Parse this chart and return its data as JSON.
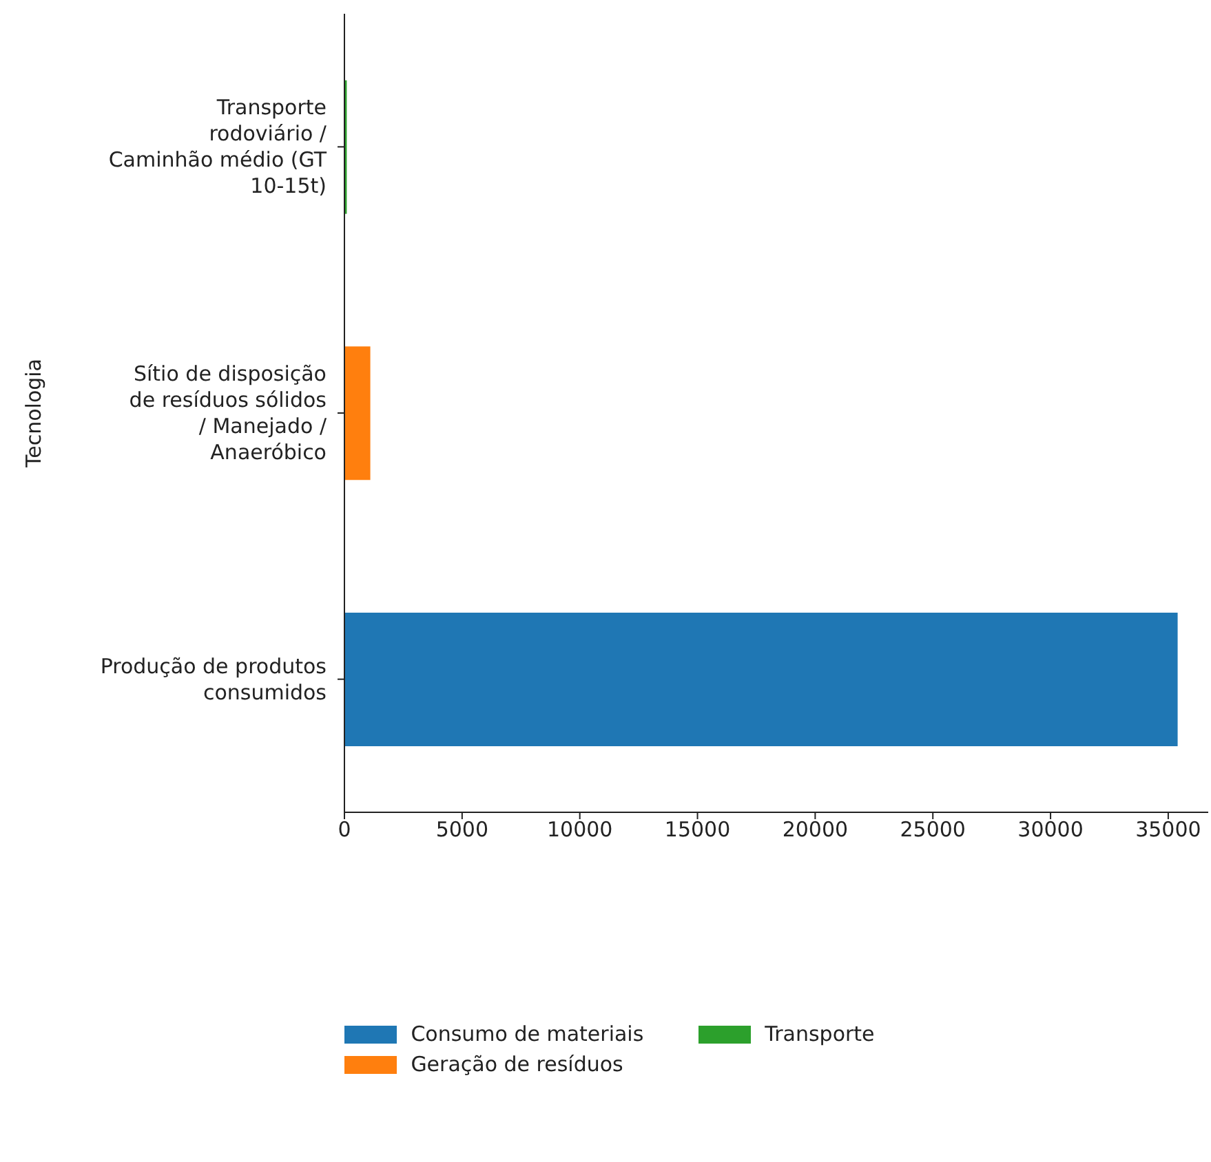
{
  "chart_data": {
    "type": "bar",
    "orientation": "horizontal",
    "stacked": true,
    "ylabel": "Tecnologia",
    "categories": [
      "Transporte rodoviário / Caminhão médio (GT 10-15t)",
      "Sítio de disposição de resíduos sólidos / Manejado / Anaeróbico",
      "Produção de produtos consumidos"
    ],
    "series": [
      {
        "name": "Consumo de materiais",
        "color": "#1f77b4",
        "values": [
          null,
          null,
          35400
        ]
      },
      {
        "name": "Geração de resíduos",
        "color": "#ff7f0e",
        "values": [
          null,
          1100,
          null
        ]
      },
      {
        "name": "Transporte",
        "color": "#2ca02c",
        "values": [
          100,
          null,
          null
        ]
      }
    ],
    "xlim": [
      0,
      36700
    ],
    "xticks": [
      0,
      5000,
      10000,
      15000,
      20000,
      25000,
      30000,
      35000
    ],
    "grid": false,
    "legend": "bottom"
  }
}
